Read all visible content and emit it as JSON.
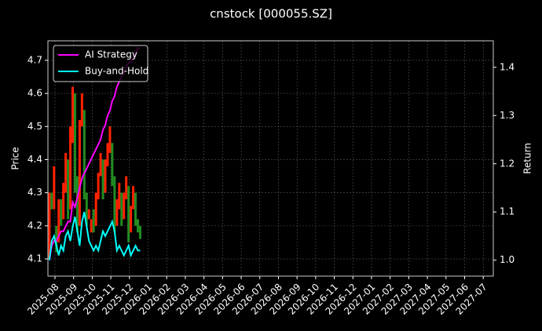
{
  "chart_data": {
    "type": "candlestick-returns",
    "title": "cnstock [000055.SZ]",
    "ylabel": "Price",
    "y2label": "Return",
    "x": [
      -0.3,
      -0.175,
      -0.05,
      0.075,
      0.2,
      0.325,
      0.45,
      0.575,
      0.7,
      0.825,
      0.95,
      1.075,
      1.2,
      1.325,
      1.45,
      1.575,
      1.7,
      1.825,
      1.95,
      2.075,
      2.2,
      2.325,
      2.45,
      2.575,
      2.7,
      2.825,
      2.95,
      3.075,
      3.2,
      3.325,
      3.45,
      3.575,
      3.7,
      3.825,
      3.95,
      4.075,
      4.2,
      4.325,
      4.45,
      4.575
    ],
    "open": [
      4.1,
      4.3,
      4.25,
      4.2,
      4.15,
      4.28,
      4.22,
      4.3,
      4.4,
      4.25,
      4.45,
      4.6,
      4.35,
      4.2,
      4.5,
      4.55,
      4.3,
      4.22,
      4.18,
      4.25,
      4.2,
      4.28,
      4.35,
      4.4,
      4.3,
      4.38,
      4.42,
      4.45,
      4.35,
      4.2,
      4.25,
      4.3,
      4.22,
      4.28,
      4.32,
      4.18,
      4.25,
      4.3,
      4.22,
      4.2
    ],
    "close": [
      4.3,
      4.25,
      4.38,
      4.12,
      4.28,
      4.2,
      4.33,
      4.42,
      4.22,
      4.5,
      4.62,
      4.3,
      4.18,
      4.52,
      4.6,
      4.28,
      4.2,
      4.25,
      4.22,
      4.18,
      4.3,
      4.36,
      4.42,
      4.28,
      4.4,
      4.45,
      4.5,
      4.32,
      4.18,
      4.28,
      4.33,
      4.2,
      4.3,
      4.35,
      4.15,
      4.26,
      4.32,
      4.2,
      4.18,
      4.16
    ],
    "up_color": "#ff2200",
    "down_color": "#228b22",
    "series": [
      {
        "name": "AI Strategy",
        "color": "#ff00ff",
        "axis": "y2",
        "values": [
          1.0,
          1.03,
          1.04,
          1.04,
          1.05,
          1.06,
          1.06,
          1.07,
          1.08,
          1.08,
          1.12,
          1.11,
          1.13,
          1.15,
          1.17,
          1.18,
          1.19,
          1.2,
          1.21,
          1.22,
          1.23,
          1.24,
          1.25,
          1.27,
          1.28,
          1.3,
          1.31,
          1.33,
          1.34,
          1.36,
          1.37,
          1.38,
          1.39,
          1.4,
          1.41,
          1.41,
          1.42,
          1.43,
          1.44,
          1.44
        ]
      },
      {
        "name": "Buy-and-Hold",
        "color": "#00ffff",
        "axis": "y2",
        "values": [
          1.0,
          1.04,
          1.05,
          1.03,
          1.01,
          1.03,
          1.02,
          1.05,
          1.06,
          1.04,
          1.07,
          1.09,
          1.06,
          1.03,
          1.08,
          1.1,
          1.07,
          1.04,
          1.03,
          1.02,
          1.03,
          1.02,
          1.04,
          1.06,
          1.05,
          1.06,
          1.07,
          1.08,
          1.06,
          1.02,
          1.03,
          1.02,
          1.01,
          1.02,
          1.03,
          1.01,
          1.02,
          1.03,
          1.02,
          1.02
        ]
      }
    ],
    "xlim": [
      -0.38,
      23.54
    ],
    "xticks": [
      {
        "value": 0,
        "label": "2025-08"
      },
      {
        "value": 1,
        "label": "2025-09"
      },
      {
        "value": 2,
        "label": "2025-10"
      },
      {
        "value": 3,
        "label": "2025-11"
      },
      {
        "value": 4,
        "label": "2025-12"
      },
      {
        "value": 5,
        "label": "2026-01"
      },
      {
        "value": 6,
        "label": "2026-02"
      },
      {
        "value": 7,
        "label": "2026-03"
      },
      {
        "value": 8,
        "label": "2026-04"
      },
      {
        "value": 9,
        "label": "2026-05"
      },
      {
        "value": 10,
        "label": "2026-06"
      },
      {
        "value": 11,
        "label": "2026-07"
      },
      {
        "value": 12,
        "label": "2026-08"
      },
      {
        "value": 13,
        "label": "2026-09"
      },
      {
        "value": 14,
        "label": "2026-10"
      },
      {
        "value": 15,
        "label": "2026-11"
      },
      {
        "value": 16,
        "label": "2026-12"
      },
      {
        "value": 17,
        "label": "2027-01"
      },
      {
        "value": 18,
        "label": "2027-02"
      },
      {
        "value": 19,
        "label": "2027-03"
      },
      {
        "value": 20,
        "label": "2027-04"
      },
      {
        "value": 21,
        "label": "2027-05"
      },
      {
        "value": 22,
        "label": "2027-06"
      },
      {
        "value": 23,
        "label": "2027-07"
      }
    ],
    "ylim": [
      4.048,
      4.759
    ],
    "yticks": [
      4.1,
      4.2,
      4.3,
      4.4,
      4.5,
      4.6,
      4.7
    ],
    "y2lim": [
      0.967,
      1.455
    ],
    "y2ticks": [
      {
        "value": 1,
        "label": "1.0"
      },
      1.1,
      1.2,
      1.3,
      1.4
    ],
    "grid": true,
    "legend": "upper-left"
  }
}
